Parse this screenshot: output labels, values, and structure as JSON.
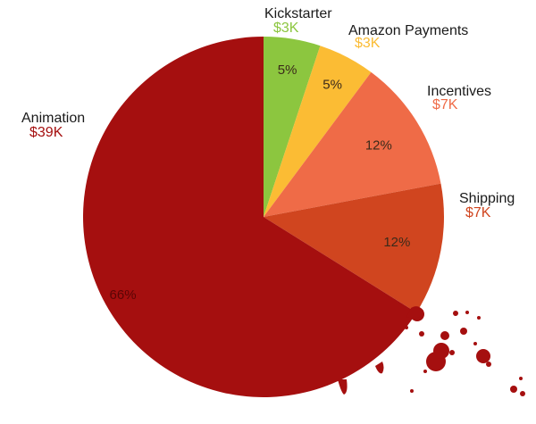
{
  "chart_data": {
    "type": "pie",
    "title": "",
    "slices": [
      {
        "name": "Kickstarter",
        "value": 3,
        "display_value": "$3K",
        "percent_label": "5%",
        "color": "#8cc63f",
        "value_color": "#8cc63f"
      },
      {
        "name": "Amazon Payments",
        "value": 3,
        "display_value": "$3K",
        "percent_label": "5%",
        "color": "#fbbc34",
        "value_color": "#fbbc34"
      },
      {
        "name": "Incentives",
        "value": 7,
        "display_value": "$7K",
        "percent_label": "12%",
        "color": "#ef6b47",
        "value_color": "#ef6b47"
      },
      {
        "name": "Shipping",
        "value": 7,
        "display_value": "$7K",
        "percent_label": "12%",
        "color": "#d0451f",
        "value_color": "#d0451f"
      },
      {
        "name": "Animation",
        "value": 39,
        "display_value": "$39K",
        "percent_label": "66%",
        "color": "#a50f0f",
        "value_color": "#a50f0f"
      }
    ],
    "decoration": "blood-splatter",
    "background": "#ffffff"
  }
}
